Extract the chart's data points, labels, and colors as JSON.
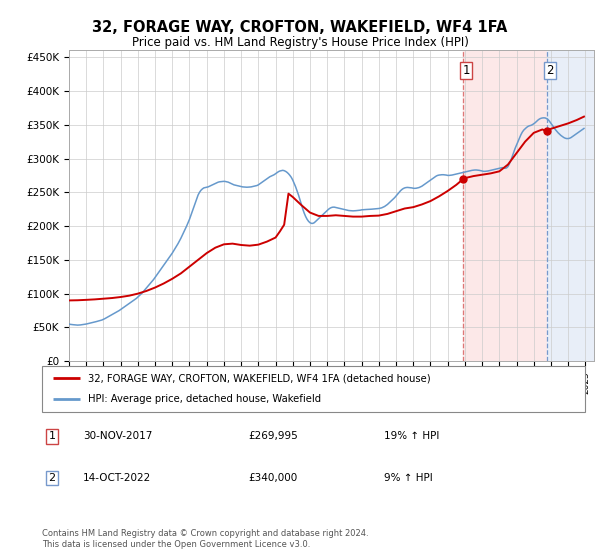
{
  "title": "32, FORAGE WAY, CROFTON, WAKEFIELD, WF4 1FA",
  "subtitle": "Price paid vs. HM Land Registry's House Price Index (HPI)",
  "ylabel_ticks": [
    "£0",
    "£50K",
    "£100K",
    "£150K",
    "£200K",
    "£250K",
    "£300K",
    "£350K",
    "£400K",
    "£450K"
  ],
  "ytick_values": [
    0,
    50000,
    100000,
    150000,
    200000,
    250000,
    300000,
    350000,
    400000,
    450000
  ],
  "xlim_start": 1995.0,
  "xlim_end": 2025.5,
  "ylim": [
    0,
    460000
  ],
  "price_paid_color": "#cc0000",
  "hpi_color": "#6699cc",
  "vline_color_1": "#dd8888",
  "vline_color_2": "#8899cc",
  "sale1_x": 2017.917,
  "sale1_y": 269995,
  "sale2_x": 2022.79,
  "sale2_y": 340000,
  "legend_label_price": "32, FORAGE WAY, CROFTON, WAKEFIELD, WF4 1FA (detached house)",
  "legend_label_hpi": "HPI: Average price, detached house, Wakefield",
  "note1_num": "1",
  "note1_date": "30-NOV-2017",
  "note1_price": "£269,995",
  "note1_hpi": "19% ↑ HPI",
  "note2_num": "2",
  "note2_date": "14-OCT-2022",
  "note2_price": "£340,000",
  "note2_hpi": "9% ↑ HPI",
  "footer": "Contains HM Land Registry data © Crown copyright and database right 2024.\nThis data is licensed under the Open Government Licence v3.0.",
  "hpi_data": [
    [
      1995.0,
      55000
    ],
    [
      1995.083,
      54500
    ],
    [
      1995.167,
      54200
    ],
    [
      1995.25,
      54000
    ],
    [
      1995.333,
      53800
    ],
    [
      1995.417,
      53600
    ],
    [
      1995.5,
      53400
    ],
    [
      1995.583,
      53500
    ],
    [
      1995.667,
      53700
    ],
    [
      1995.75,
      54000
    ],
    [
      1995.833,
      54300
    ],
    [
      1995.917,
      54600
    ],
    [
      1996.0,
      55000
    ],
    [
      1996.083,
      55500
    ],
    [
      1996.167,
      56000
    ],
    [
      1996.25,
      56500
    ],
    [
      1996.333,
      57000
    ],
    [
      1996.417,
      57500
    ],
    [
      1996.5,
      58000
    ],
    [
      1996.583,
      58600
    ],
    [
      1996.667,
      59200
    ],
    [
      1996.75,
      59800
    ],
    [
      1996.833,
      60400
    ],
    [
      1996.917,
      61000
    ],
    [
      1997.0,
      62000
    ],
    [
      1997.083,
      63000
    ],
    [
      1997.167,
      64200
    ],
    [
      1997.25,
      65400
    ],
    [
      1997.333,
      66600
    ],
    [
      1997.417,
      67800
    ],
    [
      1997.5,
      69000
    ],
    [
      1997.583,
      70200
    ],
    [
      1997.667,
      71400
    ],
    [
      1997.75,
      72600
    ],
    [
      1997.833,
      73800
    ],
    [
      1997.917,
      75000
    ],
    [
      1998.0,
      76500
    ],
    [
      1998.083,
      78000
    ],
    [
      1998.167,
      79500
    ],
    [
      1998.25,
      81000
    ],
    [
      1998.333,
      82500
    ],
    [
      1998.417,
      84000
    ],
    [
      1998.5,
      85500
    ],
    [
      1998.583,
      87000
    ],
    [
      1998.667,
      88500
    ],
    [
      1998.75,
      90000
    ],
    [
      1998.833,
      91500
    ],
    [
      1998.917,
      93000
    ],
    [
      1999.0,
      95000
    ],
    [
      1999.083,
      97000
    ],
    [
      1999.167,
      99000
    ],
    [
      1999.25,
      101000
    ],
    [
      1999.333,
      103500
    ],
    [
      1999.417,
      106000
    ],
    [
      1999.5,
      108500
    ],
    [
      1999.583,
      111000
    ],
    [
      1999.667,
      113500
    ],
    [
      1999.75,
      116000
    ],
    [
      1999.833,
      118500
    ],
    [
      1999.917,
      121000
    ],
    [
      2000.0,
      124000
    ],
    [
      2000.083,
      127000
    ],
    [
      2000.167,
      130000
    ],
    [
      2000.25,
      133000
    ],
    [
      2000.333,
      136000
    ],
    [
      2000.417,
      139000
    ],
    [
      2000.5,
      142000
    ],
    [
      2000.583,
      145000
    ],
    [
      2000.667,
      148000
    ],
    [
      2000.75,
      151000
    ],
    [
      2000.833,
      154000
    ],
    [
      2000.917,
      157000
    ],
    [
      2001.0,
      160000
    ],
    [
      2001.083,
      163500
    ],
    [
      2001.167,
      167000
    ],
    [
      2001.25,
      170500
    ],
    [
      2001.333,
      174000
    ],
    [
      2001.417,
      178000
    ],
    [
      2001.5,
      182000
    ],
    [
      2001.583,
      186500
    ],
    [
      2001.667,
      191000
    ],
    [
      2001.75,
      195500
    ],
    [
      2001.833,
      200000
    ],
    [
      2001.917,
      205000
    ],
    [
      2002.0,
      210000
    ],
    [
      2002.083,
      216000
    ],
    [
      2002.167,
      222000
    ],
    [
      2002.25,
      228000
    ],
    [
      2002.333,
      234000
    ],
    [
      2002.417,
      240000
    ],
    [
      2002.5,
      246000
    ],
    [
      2002.583,
      250000
    ],
    [
      2002.667,
      253000
    ],
    [
      2002.75,
      255000
    ],
    [
      2002.833,
      256500
    ],
    [
      2002.917,
      257000
    ],
    [
      2003.0,
      257500
    ],
    [
      2003.083,
      258000
    ],
    [
      2003.167,
      259000
    ],
    [
      2003.25,
      260000
    ],
    [
      2003.333,
      261000
    ],
    [
      2003.417,
      262000
    ],
    [
      2003.5,
      263000
    ],
    [
      2003.583,
      264000
    ],
    [
      2003.667,
      265000
    ],
    [
      2003.75,
      265500
    ],
    [
      2003.833,
      265800
    ],
    [
      2003.917,
      266000
    ],
    [
      2004.0,
      266200
    ],
    [
      2004.083,
      266000
    ],
    [
      2004.167,
      265500
    ],
    [
      2004.25,
      265000
    ],
    [
      2004.333,
      264000
    ],
    [
      2004.417,
      263000
    ],
    [
      2004.5,
      262000
    ],
    [
      2004.583,
      261000
    ],
    [
      2004.667,
      260500
    ],
    [
      2004.75,
      260000
    ],
    [
      2004.833,
      259500
    ],
    [
      2004.917,
      259000
    ],
    [
      2005.0,
      258500
    ],
    [
      2005.083,
      258000
    ],
    [
      2005.167,
      257800
    ],
    [
      2005.25,
      257600
    ],
    [
      2005.333,
      257500
    ],
    [
      2005.417,
      257600
    ],
    [
      2005.5,
      257800
    ],
    [
      2005.583,
      258000
    ],
    [
      2005.667,
      258500
    ],
    [
      2005.75,
      259000
    ],
    [
      2005.833,
      259500
    ],
    [
      2005.917,
      260000
    ],
    [
      2006.0,
      261000
    ],
    [
      2006.083,
      262500
    ],
    [
      2006.167,
      264000
    ],
    [
      2006.25,
      265500
    ],
    [
      2006.333,
      267000
    ],
    [
      2006.417,
      268500
    ],
    [
      2006.5,
      270000
    ],
    [
      2006.583,
      271500
    ],
    [
      2006.667,
      273000
    ],
    [
      2006.75,
      274000
    ],
    [
      2006.833,
      275000
    ],
    [
      2006.917,
      276000
    ],
    [
      2007.0,
      277500
    ],
    [
      2007.083,
      279000
    ],
    [
      2007.167,
      280500
    ],
    [
      2007.25,
      281500
    ],
    [
      2007.333,
      282000
    ],
    [
      2007.417,
      282500
    ],
    [
      2007.5,
      282000
    ],
    [
      2007.583,
      281000
    ],
    [
      2007.667,
      279500
    ],
    [
      2007.75,
      277500
    ],
    [
      2007.833,
      275000
    ],
    [
      2007.917,
      272000
    ],
    [
      2008.0,
      268000
    ],
    [
      2008.083,
      263000
    ],
    [
      2008.167,
      258000
    ],
    [
      2008.25,
      252000
    ],
    [
      2008.333,
      246000
    ],
    [
      2008.417,
      239000
    ],
    [
      2008.5,
      232000
    ],
    [
      2008.583,
      225000
    ],
    [
      2008.667,
      219000
    ],
    [
      2008.75,
      214000
    ],
    [
      2008.833,
      210000
    ],
    [
      2008.917,
      207000
    ],
    [
      2009.0,
      205000
    ],
    [
      2009.083,
      204000
    ],
    [
      2009.167,
      204000
    ],
    [
      2009.25,
      205000
    ],
    [
      2009.333,
      207000
    ],
    [
      2009.417,
      209000
    ],
    [
      2009.5,
      211000
    ],
    [
      2009.583,
      213000
    ],
    [
      2009.667,
      215000
    ],
    [
      2009.75,
      217000
    ],
    [
      2009.833,
      219000
    ],
    [
      2009.917,
      221000
    ],
    [
      2010.0,
      223000
    ],
    [
      2010.083,
      225000
    ],
    [
      2010.167,
      226500
    ],
    [
      2010.25,
      227500
    ],
    [
      2010.333,
      228000
    ],
    [
      2010.417,
      228000
    ],
    [
      2010.5,
      227500
    ],
    [
      2010.583,
      227000
    ],
    [
      2010.667,
      226500
    ],
    [
      2010.75,
      226000
    ],
    [
      2010.833,
      225500
    ],
    [
      2010.917,
      225000
    ],
    [
      2011.0,
      224500
    ],
    [
      2011.083,
      224000
    ],
    [
      2011.167,
      223500
    ],
    [
      2011.25,
      223000
    ],
    [
      2011.333,
      222800
    ],
    [
      2011.417,
      222600
    ],
    [
      2011.5,
      222500
    ],
    [
      2011.583,
      222600
    ],
    [
      2011.667,
      222800
    ],
    [
      2011.75,
      223000
    ],
    [
      2011.833,
      223200
    ],
    [
      2011.917,
      223500
    ],
    [
      2012.0,
      224000
    ],
    [
      2012.083,
      224200
    ],
    [
      2012.167,
      224400
    ],
    [
      2012.25,
      224500
    ],
    [
      2012.333,
      224600
    ],
    [
      2012.417,
      224700
    ],
    [
      2012.5,
      224800
    ],
    [
      2012.583,
      225000
    ],
    [
      2012.667,
      225200
    ],
    [
      2012.75,
      225400
    ],
    [
      2012.833,
      225600
    ],
    [
      2012.917,
      225800
    ],
    [
      2013.0,
      226000
    ],
    [
      2013.083,
      226500
    ],
    [
      2013.167,
      227000
    ],
    [
      2013.25,
      228000
    ],
    [
      2013.333,
      229000
    ],
    [
      2013.417,
      230500
    ],
    [
      2013.5,
      232000
    ],
    [
      2013.583,
      234000
    ],
    [
      2013.667,
      236000
    ],
    [
      2013.75,
      238000
    ],
    [
      2013.833,
      240000
    ],
    [
      2013.917,
      242000
    ],
    [
      2014.0,
      244500
    ],
    [
      2014.083,
      247000
    ],
    [
      2014.167,
      249500
    ],
    [
      2014.25,
      252000
    ],
    [
      2014.333,
      254000
    ],
    [
      2014.417,
      255500
    ],
    [
      2014.5,
      256500
    ],
    [
      2014.583,
      257000
    ],
    [
      2014.667,
      257200
    ],
    [
      2014.75,
      257000
    ],
    [
      2014.833,
      256800
    ],
    [
      2014.917,
      256500
    ],
    [
      2015.0,
      256000
    ],
    [
      2015.083,
      255800
    ],
    [
      2015.167,
      256000
    ],
    [
      2015.25,
      256500
    ],
    [
      2015.333,
      257000
    ],
    [
      2015.417,
      258000
    ],
    [
      2015.5,
      259000
    ],
    [
      2015.583,
      260500
    ],
    [
      2015.667,
      262000
    ],
    [
      2015.75,
      263500
    ],
    [
      2015.833,
      265000
    ],
    [
      2015.917,
      266500
    ],
    [
      2016.0,
      268000
    ],
    [
      2016.083,
      269500
    ],
    [
      2016.167,
      271000
    ],
    [
      2016.25,
      272500
    ],
    [
      2016.333,
      274000
    ],
    [
      2016.417,
      275000
    ],
    [
      2016.5,
      275500
    ],
    [
      2016.583,
      275800
    ],
    [
      2016.667,
      276000
    ],
    [
      2016.75,
      276000
    ],
    [
      2016.833,
      275800
    ],
    [
      2016.917,
      275500
    ],
    [
      2017.0,
      275000
    ],
    [
      2017.083,
      275000
    ],
    [
      2017.167,
      275200
    ],
    [
      2017.25,
      275500
    ],
    [
      2017.333,
      276000
    ],
    [
      2017.417,
      276500
    ],
    [
      2017.5,
      277000
    ],
    [
      2017.583,
      277500
    ],
    [
      2017.667,
      278000
    ],
    [
      2017.75,
      278500
    ],
    [
      2017.833,
      279000
    ],
    [
      2017.917,
      279500
    ],
    [
      2018.0,
      280000
    ],
    [
      2018.083,
      280500
    ],
    [
      2018.167,
      281000
    ],
    [
      2018.25,
      281500
    ],
    [
      2018.333,
      282000
    ],
    [
      2018.417,
      282500
    ],
    [
      2018.5,
      282800
    ],
    [
      2018.583,
      283000
    ],
    [
      2018.667,
      283000
    ],
    [
      2018.75,
      282800
    ],
    [
      2018.833,
      282500
    ],
    [
      2018.917,
      282000
    ],
    [
      2019.0,
      281500
    ],
    [
      2019.083,
      281000
    ],
    [
      2019.167,
      281000
    ],
    [
      2019.25,
      281200
    ],
    [
      2019.333,
      281500
    ],
    [
      2019.417,
      282000
    ],
    [
      2019.5,
      282500
    ],
    [
      2019.583,
      283000
    ],
    [
      2019.667,
      283500
    ],
    [
      2019.75,
      284000
    ],
    [
      2019.833,
      284500
    ],
    [
      2019.917,
      285000
    ],
    [
      2020.0,
      285500
    ],
    [
      2020.083,
      286000
    ],
    [
      2020.167,
      286500
    ],
    [
      2020.25,
      286000
    ],
    [
      2020.333,
      285500
    ],
    [
      2020.417,
      286000
    ],
    [
      2020.5,
      288000
    ],
    [
      2020.583,
      292000
    ],
    [
      2020.667,
      297000
    ],
    [
      2020.75,
      303000
    ],
    [
      2020.833,
      309000
    ],
    [
      2020.917,
      315000
    ],
    [
      2021.0,
      320000
    ],
    [
      2021.083,
      325000
    ],
    [
      2021.167,
      330000
    ],
    [
      2021.25,
      335000
    ],
    [
      2021.333,
      339000
    ],
    [
      2021.417,
      342000
    ],
    [
      2021.5,
      344000
    ],
    [
      2021.583,
      346000
    ],
    [
      2021.667,
      347500
    ],
    [
      2021.75,
      348500
    ],
    [
      2021.833,
      349000
    ],
    [
      2021.917,
      350000
    ],
    [
      2022.0,
      351500
    ],
    [
      2022.083,
      353000
    ],
    [
      2022.167,
      355000
    ],
    [
      2022.25,
      357000
    ],
    [
      2022.333,
      358500
    ],
    [
      2022.417,
      359500
    ],
    [
      2022.5,
      360000
    ],
    [
      2022.583,
      360200
    ],
    [
      2022.667,
      360000
    ],
    [
      2022.75,
      359000
    ],
    [
      2022.833,
      357500
    ],
    [
      2022.917,
      355000
    ],
    [
      2023.0,
      352000
    ],
    [
      2023.083,
      349000
    ],
    [
      2023.167,
      346000
    ],
    [
      2023.25,
      343000
    ],
    [
      2023.333,
      340500
    ],
    [
      2023.417,
      338000
    ],
    [
      2023.5,
      336000
    ],
    [
      2023.583,
      334000
    ],
    [
      2023.667,
      332500
    ],
    [
      2023.75,
      331000
    ],
    [
      2023.833,
      330000
    ],
    [
      2023.917,
      329500
    ],
    [
      2024.0,
      329500
    ],
    [
      2024.083,
      330000
    ],
    [
      2024.167,
      331000
    ],
    [
      2024.25,
      332500
    ],
    [
      2024.333,
      334000
    ],
    [
      2024.417,
      335500
    ],
    [
      2024.5,
      337000
    ],
    [
      2024.583,
      338500
    ],
    [
      2024.667,
      340000
    ],
    [
      2024.75,
      341500
    ],
    [
      2024.833,
      343000
    ],
    [
      2024.917,
      344500
    ]
  ],
  "price_data": [
    [
      1995.0,
      89950
    ],
    [
      1995.5,
      90200
    ],
    [
      1996.0,
      90800
    ],
    [
      1996.5,
      91500
    ],
    [
      1997.0,
      92500
    ],
    [
      1997.5,
      93500
    ],
    [
      1998.0,
      95000
    ],
    [
      1998.5,
      97000
    ],
    [
      1999.0,
      100000
    ],
    [
      1999.5,
      104000
    ],
    [
      2000.0,
      109000
    ],
    [
      2000.5,
      115000
    ],
    [
      2001.0,
      122000
    ],
    [
      2001.5,
      130000
    ],
    [
      2002.0,
      140000
    ],
    [
      2002.5,
      150000
    ],
    [
      2003.0,
      160000
    ],
    [
      2003.5,
      168000
    ],
    [
      2004.0,
      173000
    ],
    [
      2004.5,
      174000
    ],
    [
      2005.0,
      172000
    ],
    [
      2005.5,
      171000
    ],
    [
      2006.0,
      172500
    ],
    [
      2006.5,
      177000
    ],
    [
      2007.0,
      183000
    ],
    [
      2007.25,
      192000
    ],
    [
      2007.5,
      202000
    ],
    [
      2007.75,
      248000
    ],
    [
      2008.0,
      243000
    ],
    [
      2008.5,
      231000
    ],
    [
      2009.0,
      220000
    ],
    [
      2009.5,
      215000
    ],
    [
      2010.0,
      215000
    ],
    [
      2010.5,
      216000
    ],
    [
      2011.0,
      215000
    ],
    [
      2011.5,
      214000
    ],
    [
      2012.0,
      214000
    ],
    [
      2012.5,
      215000
    ],
    [
      2013.0,
      215500
    ],
    [
      2013.5,
      218000
    ],
    [
      2014.0,
      222000
    ],
    [
      2014.5,
      226000
    ],
    [
      2015.0,
      228000
    ],
    [
      2015.5,
      232000
    ],
    [
      2016.0,
      237000
    ],
    [
      2016.5,
      244000
    ],
    [
      2017.0,
      252000
    ],
    [
      2017.5,
      261000
    ],
    [
      2017.917,
      269995
    ],
    [
      2018.0,
      271000
    ],
    [
      2018.5,
      274000
    ],
    [
      2019.0,
      276000
    ],
    [
      2019.5,
      278000
    ],
    [
      2020.0,
      281000
    ],
    [
      2020.5,
      291000
    ],
    [
      2021.0,
      308000
    ],
    [
      2021.5,
      325000
    ],
    [
      2022.0,
      338000
    ],
    [
      2022.5,
      343000
    ],
    [
      2022.79,
      340000
    ],
    [
      2023.0,
      344000
    ],
    [
      2023.5,
      348000
    ],
    [
      2024.0,
      352000
    ],
    [
      2024.5,
      357000
    ],
    [
      2024.917,
      362000
    ]
  ]
}
